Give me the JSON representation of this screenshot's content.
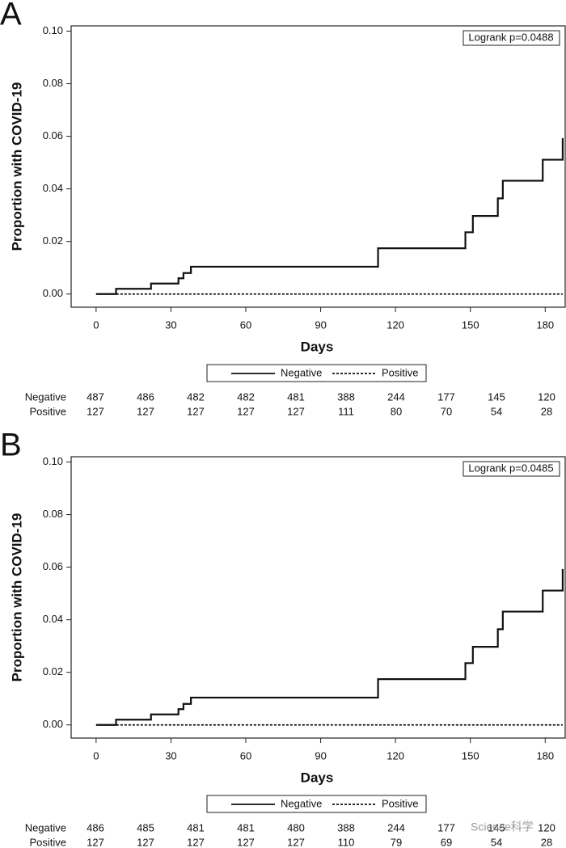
{
  "chart_data": [
    {
      "type": "step",
      "label": "A",
      "annotation": "Logrank p=0.0488",
      "xlabel": "Days",
      "ylabel": "Proportion with COVID-19",
      "xlim": [
        -10,
        188
      ],
      "ylim": [
        -0.005,
        0.102
      ],
      "xticks": [
        0,
        30,
        60,
        90,
        120,
        150,
        180
      ],
      "yticks": [
        {
          "value": 0,
          "label": "0.00"
        },
        {
          "value": 0.02,
          "label": "0.02"
        },
        {
          "value": 0.04,
          "label": "0.04"
        },
        {
          "value": 0.06,
          "label": "0.06"
        },
        {
          "value": 0.08,
          "label": "0.08"
        },
        {
          "value": 0.1,
          "label": "0.10"
        }
      ],
      "series": [
        {
          "name": "Negative",
          "color": "#111111",
          "dash": false,
          "x": [
            0,
            8,
            22,
            33,
            35,
            38,
            113,
            148,
            151,
            161,
            163,
            179,
            187
          ],
          "values": [
            0,
            0.002,
            0.004,
            0.006,
            0.008,
            0.0104,
            0.0174,
            0.0235,
            0.0297,
            0.0364,
            0.0431,
            0.0511,
            0.0593
          ]
        },
        {
          "name": "Positive",
          "color": "#111111",
          "dash": true,
          "x": [
            0,
            187
          ],
          "values": [
            0,
            0
          ]
        }
      ],
      "risk_table": [
        {
          "name": "Negative",
          "values": [
            487,
            486,
            482,
            482,
            481,
            388,
            244,
            177,
            145,
            120
          ]
        },
        {
          "name": "Positive",
          "values": [
            127,
            127,
            127,
            127,
            127,
            111,
            80,
            70,
            54,
            28
          ]
        }
      ]
    },
    {
      "type": "step",
      "label": "B",
      "annotation": "Logrank p=0.0485",
      "xlabel": "Days",
      "ylabel": "Proportion with COVID-19",
      "xlim": [
        -10,
        188
      ],
      "ylim": [
        -0.005,
        0.102
      ],
      "xticks": [
        0,
        30,
        60,
        90,
        120,
        150,
        180
      ],
      "yticks": [
        {
          "value": 0,
          "label": "0.00"
        },
        {
          "value": 0.02,
          "label": "0.02"
        },
        {
          "value": 0.04,
          "label": "0.04"
        },
        {
          "value": 0.06,
          "label": "0.06"
        },
        {
          "value": 0.08,
          "label": "0.08"
        },
        {
          "value": 0.1,
          "label": "0.10"
        }
      ],
      "series": [
        {
          "name": "Negative",
          "color": "#111111",
          "dash": false,
          "x": [
            0,
            8,
            22,
            33,
            35,
            38,
            113,
            148,
            151,
            161,
            163,
            179,
            187
          ],
          "values": [
            0,
            0.002,
            0.004,
            0.006,
            0.008,
            0.0104,
            0.0174,
            0.0235,
            0.0297,
            0.0364,
            0.0431,
            0.0511,
            0.0593
          ]
        },
        {
          "name": "Positive",
          "color": "#111111",
          "dash": true,
          "x": [
            0,
            187
          ],
          "values": [
            0,
            0
          ]
        }
      ],
      "risk_table": [
        {
          "name": "Negative",
          "values": [
            486,
            485,
            481,
            481,
            480,
            388,
            244,
            177,
            145,
            120
          ]
        },
        {
          "name": "Positive",
          "values": [
            127,
            127,
            127,
            127,
            127,
            110,
            79,
            69,
            54,
            28
          ]
        }
      ]
    }
  ],
  "watermark": "Science科学"
}
